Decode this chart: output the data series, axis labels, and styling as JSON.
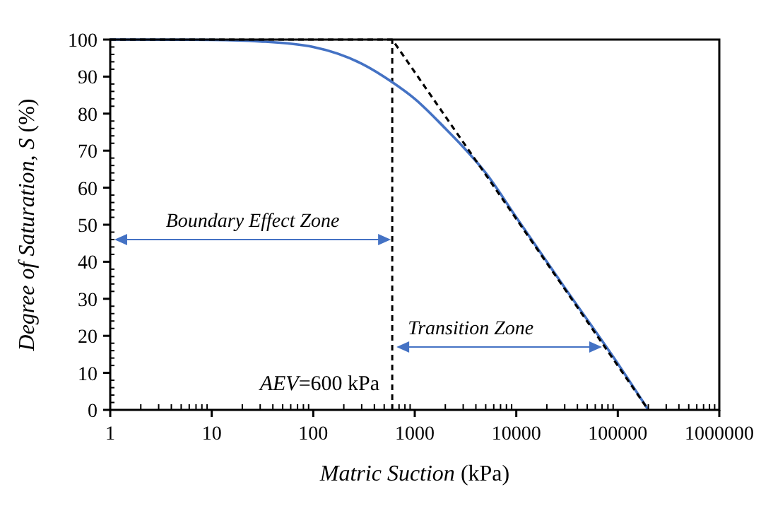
{
  "chart_data": {
    "type": "line",
    "xlabel": "Matric Suction (kPa)",
    "ylabel": "Degree of Saturation, S (%)",
    "log": "x",
    "xlim": [
      1,
      1000000
    ],
    "xticks": [
      1,
      10,
      100,
      1000,
      10000,
      100000,
      1000000
    ],
    "ylim": [
      0,
      100
    ],
    "yticks": [
      0,
      10,
      20,
      30,
      40,
      50,
      60,
      70,
      80,
      90,
      100
    ],
    "grid": false,
    "marker": "none",
    "series": [
      {
        "color": "#4472c4",
        "line_style": "solid",
        "x": [
          1,
          10,
          30,
          100,
          300,
          600,
          1000,
          2000,
          3000,
          5000,
          10000,
          30000,
          100000,
          200000
        ],
        "values": [
          100,
          99.9,
          99.5,
          98,
          93.5,
          88.5,
          84,
          76,
          71,
          64,
          52,
          33,
          12.5,
          0
        ]
      },
      {
        "color": "#000000",
        "line_style": "dashed",
        "x": [
          1,
          600,
          200000
        ],
        "values": [
          100,
          100,
          0
        ]
      }
    ],
    "ref_lines": [
      {
        "axis": "x",
        "value": 600,
        "label": "AEV=600 kPa",
        "color": "#000000",
        "line_style": "dashed"
      }
    ],
    "annotations": [
      "Boundary Effect Zone",
      "Transition Zone"
    ]
  }
}
